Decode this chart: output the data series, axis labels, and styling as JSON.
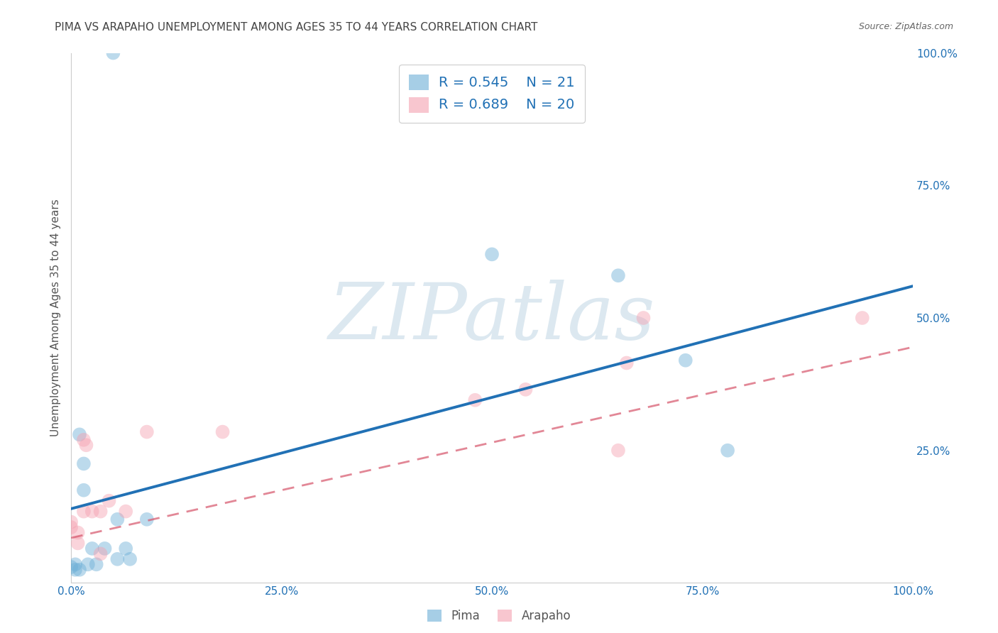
{
  "title": "PIMA VS ARAPAHO UNEMPLOYMENT AMONG AGES 35 TO 44 YEARS CORRELATION CHART",
  "source": "Source: ZipAtlas.com",
  "ylabel": "Unemployment Among Ages 35 to 44 years",
  "pima_color": "#6baed6",
  "arapaho_color": "#f4a0b0",
  "pima_line_color": "#2171b5",
  "arapaho_line_color": "#d6546a",
  "background_color": "#ffffff",
  "grid_color": "#bbbbbb",
  "xlim": [
    0.0,
    1.0
  ],
  "ylim": [
    0.0,
    1.0
  ],
  "xtick_values": [
    0.0,
    0.25,
    0.5,
    0.75,
    1.0
  ],
  "xtick_labels": [
    "0.0%",
    "25.0%",
    "50.0%",
    "75.0%",
    "100.0%"
  ],
  "right_ytick_values": [
    0.25,
    0.5,
    0.75,
    1.0
  ],
  "right_ytick_labels": [
    "25.0%",
    "50.0%",
    "75.0%",
    "100.0%"
  ],
  "pima_R": 0.545,
  "pima_N": 21,
  "arapaho_R": 0.689,
  "arapaho_N": 20,
  "pima_x": [
    0.05,
    0.5,
    0.65,
    0.01,
    0.005,
    0.0,
    0.005,
    0.01,
    0.02,
    0.03,
    0.055,
    0.07,
    0.09,
    0.73,
    0.78,
    0.015,
    0.025,
    0.04,
    0.055,
    0.065,
    0.015
  ],
  "pima_y": [
    1.0,
    0.62,
    0.58,
    0.28,
    0.035,
    0.03,
    0.025,
    0.025,
    0.035,
    0.035,
    0.12,
    0.045,
    0.12,
    0.42,
    0.25,
    0.175,
    0.065,
    0.065,
    0.045,
    0.065,
    0.225
  ],
  "arapaho_x": [
    0.015,
    0.0,
    0.0,
    0.008,
    0.008,
    0.015,
    0.018,
    0.025,
    0.035,
    0.035,
    0.045,
    0.065,
    0.09,
    0.18,
    0.48,
    0.54,
    0.65,
    0.66,
    0.68,
    0.94
  ],
  "arapaho_y": [
    0.135,
    0.115,
    0.105,
    0.095,
    0.075,
    0.27,
    0.26,
    0.135,
    0.135,
    0.055,
    0.155,
    0.135,
    0.285,
    0.285,
    0.345,
    0.365,
    0.25,
    0.415,
    0.5,
    0.5
  ],
  "pima_line_intercept": 0.14,
  "pima_line_slope": 0.42,
  "arapaho_line_intercept": 0.085,
  "arapaho_line_slope": 0.36,
  "marker_size": 200,
  "marker_alpha": 0.45,
  "watermark": "ZIPatlas",
  "watermark_color": "#dce8f0",
  "watermark_fontsize": 80,
  "tick_color_x": "#2171b5",
  "tick_color_right": "#2171b5",
  "legend_label_color": "#2171b5",
  "title_color": "#444444",
  "source_color": "#666666",
  "ylabel_color": "#555555"
}
